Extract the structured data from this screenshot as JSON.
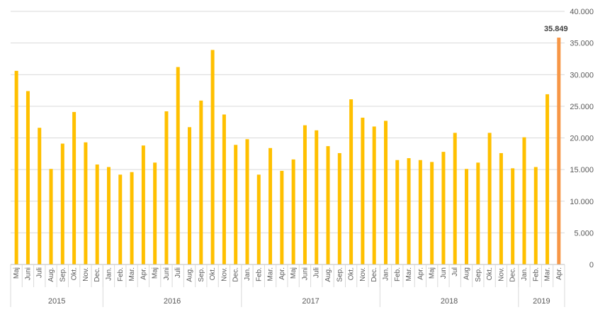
{
  "chart_data": {
    "type": "bar",
    "title": "",
    "xlabel": "",
    "ylabel": "",
    "ylim": [
      0,
      40000
    ],
    "y_ticks": [
      "0",
      "5.000",
      "10.000",
      "15.000",
      "20.000",
      "25.000",
      "30.000",
      "35.000",
      "40.000"
    ],
    "y_axis_position": "right",
    "grid": true,
    "bar_color": "#FFC000",
    "highlight_color": "#F79646",
    "categories": [
      "Maj",
      "Juni",
      "Juli",
      "Aug.",
      "Sep.",
      "Okt.",
      "Nov.",
      "Dec.",
      "Jan.",
      "Feb.",
      "Mar.",
      "Apr.",
      "Maj",
      "Juni",
      "Juli",
      "Aug.",
      "Sep.",
      "Okt.",
      "Nov.",
      "Dec.",
      "Jan.",
      "Feb.",
      "Mar.",
      "Apr.",
      "Maj",
      "Juni",
      "Juli",
      "Aug.",
      "Sep.",
      "Okt.",
      "Nov.",
      "Dec.",
      "Jan.",
      "Feb.",
      "Mar.",
      "Apr.",
      "Maj",
      "Jun",
      "Jul",
      "Aug",
      "Sep.",
      "Okt.",
      "Nov.",
      "Dec.",
      "Jan.",
      "Feb.",
      "Mar.",
      "Apr."
    ],
    "values": [
      30600,
      27400,
      21600,
      15100,
      19100,
      24100,
      19300,
      15800,
      15400,
      14200,
      14600,
      18800,
      16100,
      24200,
      31200,
      21700,
      25900,
      33900,
      23700,
      18900,
      19800,
      14200,
      18400,
      14800,
      16600,
      22000,
      21200,
      18700,
      17600,
      26100,
      23200,
      21800,
      22700,
      16500,
      16800,
      16500,
      16200,
      17800,
      20800,
      15100,
      16100,
      20800,
      17600,
      15200,
      20100,
      15400,
      26900,
      35849
    ],
    "years": [
      {
        "label": "2015",
        "count": 8
      },
      {
        "label": "2016",
        "count": 12
      },
      {
        "label": "2017",
        "count": 12
      },
      {
        "label": "2018",
        "count": 12
      },
      {
        "label": "2019",
        "count": 4
      }
    ],
    "annotations": [
      {
        "index": 47,
        "text": "35.849"
      }
    ]
  }
}
